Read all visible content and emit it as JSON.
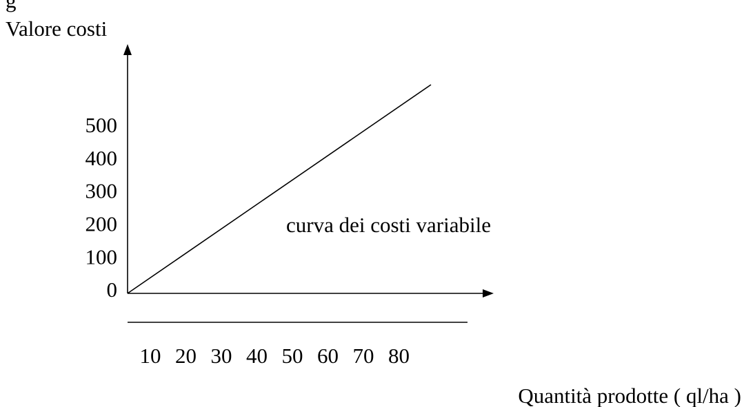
{
  "top_fragment": "g",
  "y_axis_label": "Valore costi",
  "x_axis_label": "Quantità prodotte ( ql/ha )",
  "curve_label": "curva dei costi variabile",
  "y_labels": [
    500,
    400,
    300,
    200,
    100,
    0
  ],
  "x_labels": [
    10,
    20,
    30,
    40,
    50,
    60,
    70,
    80
  ]
}
